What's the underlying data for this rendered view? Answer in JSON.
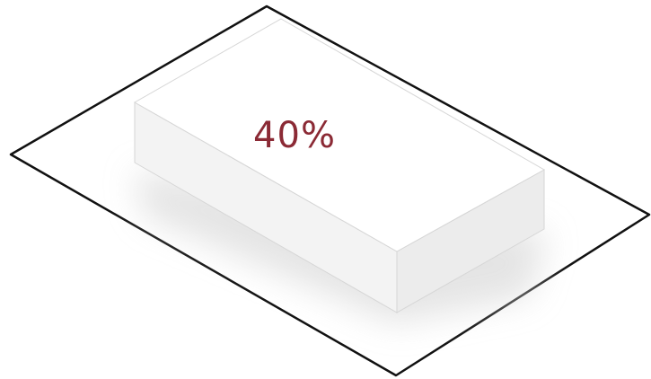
{
  "diagram": {
    "percentage_label": "40%",
    "colors": {
      "outline": "#111111",
      "plot_fill": "#ffffff",
      "box_top": "#ffffff",
      "box_left_face": "#f3f3f3",
      "box_right_face": "#ececec",
      "box_edge": "#d6d6d6",
      "shadow": "#dcdcdc",
      "label": "#8b2a35"
    }
  }
}
